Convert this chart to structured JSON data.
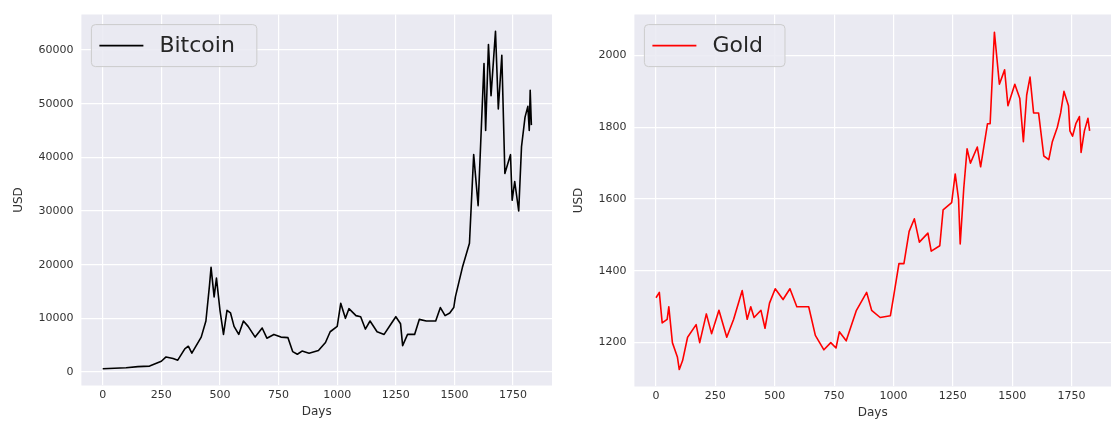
{
  "chart_data": [
    {
      "type": "line",
      "xlabel": "Days",
      "ylabel": "USD",
      "legend": "top left",
      "grid": true,
      "xlim": [
        -91,
        1916
      ],
      "xticks": [
        0,
        250,
        500,
        750,
        1000,
        1250,
        1500,
        1750
      ],
      "ylim": [
        -2500,
        66600
      ],
      "yticks": [
        0,
        10000,
        20000,
        30000,
        40000,
        50000,
        60000
      ],
      "series": [
        {
          "name": "Bitcoin",
          "color": "#000000",
          "x": [
            0,
            100,
            150,
            200,
            250,
            270,
            300,
            320,
            350,
            365,
            380,
            420,
            440,
            455,
            462,
            475,
            485,
            500,
            515,
            530,
            545,
            560,
            580,
            600,
            620,
            650,
            680,
            700,
            730,
            760,
            790,
            810,
            830,
            850,
            880,
            920,
            950,
            970,
            1000,
            1015,
            1035,
            1050,
            1080,
            1100,
            1120,
            1140,
            1170,
            1200,
            1230,
            1250,
            1270,
            1279,
            1300,
            1330,
            1350,
            1380,
            1420,
            1440,
            1460,
            1480,
            1497,
            1504,
            1534,
            1564,
            1582,
            1601,
            1616,
            1626,
            1633,
            1645,
            1656,
            1675,
            1687,
            1702,
            1715,
            1739,
            1746,
            1757,
            1774,
            1786,
            1801,
            1813,
            1819,
            1823,
            1828
          ],
          "values": [
            600,
            800,
            1000,
            1100,
            2000,
            2800,
            2500,
            2200,
            4300,
            4800,
            3500,
            6500,
            9500,
            16000,
            19500,
            14000,
            17500,
            11500,
            7000,
            11500,
            11000,
            8500,
            7000,
            9500,
            8500,
            6500,
            8200,
            6300,
            7000,
            6500,
            6400,
            3800,
            3300,
            3900,
            3500,
            4000,
            5500,
            7500,
            8500,
            12800,
            10000,
            11800,
            10500,
            10300,
            8000,
            9500,
            7500,
            7000,
            9000,
            10300,
            9000,
            4900,
            7000,
            7000,
            9800,
            9500,
            9500,
            12000,
            10500,
            11000,
            12000,
            14000,
            19500,
            24000,
            40500,
            31000,
            47000,
            57500,
            45000,
            61000,
            51500,
            63500,
            49000,
            59000,
            37000,
            40500,
            32000,
            35500,
            30000,
            42000,
            47500,
            49500,
            45000,
            52500,
            46000
          ]
        }
      ]
    },
    {
      "type": "line",
      "xlabel": "Days",
      "ylabel": "USD",
      "legend": "top left",
      "grid": true,
      "xlim": [
        -91,
        1916
      ],
      "xticks": [
        0,
        250,
        500,
        750,
        1000,
        1250,
        1500,
        1750
      ],
      "ylim": [
        1078,
        2114
      ],
      "yticks": [
        1200,
        1400,
        1600,
        1800,
        2000
      ],
      "series": [
        {
          "name": "Gold",
          "color": "#ff0000",
          "x": [
            0,
            14,
            26,
            47,
            54,
            69,
            90,
            98,
            112,
            133,
            169,
            184,
            212,
            234,
            265,
            298,
            327,
            363,
            384,
            399,
            413,
            442,
            459,
            478,
            502,
            535,
            564,
            593,
            643,
            671,
            707,
            736,
            758,
            772,
            801,
            844,
            887,
            908,
            944,
            987,
            1001,
            1023,
            1044,
            1066,
            1088,
            1109,
            1145,
            1159,
            1195,
            1209,
            1245,
            1260,
            1274,
            1281,
            1296,
            1310,
            1324,
            1353,
            1367,
            1396,
            1407,
            1425,
            1446,
            1468,
            1482,
            1511,
            1532,
            1547,
            1561,
            1575,
            1590,
            1611,
            1633,
            1654,
            1669,
            1690,
            1704,
            1718,
            1737,
            1743,
            1754,
            1768,
            1783,
            1790,
            1804,
            1819,
            1826
          ],
          "values": [
            1325,
            1340,
            1255,
            1265,
            1300,
            1200,
            1160,
            1125,
            1150,
            1215,
            1250,
            1200,
            1280,
            1225,
            1290,
            1215,
            1265,
            1345,
            1265,
            1300,
            1270,
            1290,
            1240,
            1310,
            1350,
            1320,
            1350,
            1300,
            1300,
            1220,
            1180,
            1200,
            1185,
            1230,
            1205,
            1290,
            1340,
            1290,
            1270,
            1275,
            1330,
            1420,
            1420,
            1510,
            1545,
            1480,
            1505,
            1455,
            1470,
            1570,
            1590,
            1670,
            1600,
            1475,
            1630,
            1740,
            1700,
            1745,
            1690,
            1810,
            1810,
            2065,
            1920,
            1960,
            1860,
            1920,
            1880,
            1760,
            1890,
            1940,
            1840,
            1840,
            1720,
            1710,
            1760,
            1800,
            1840,
            1900,
            1860,
            1790,
            1775,
            1810,
            1830,
            1730,
            1790,
            1825,
            1790
          ]
        }
      ]
    }
  ]
}
